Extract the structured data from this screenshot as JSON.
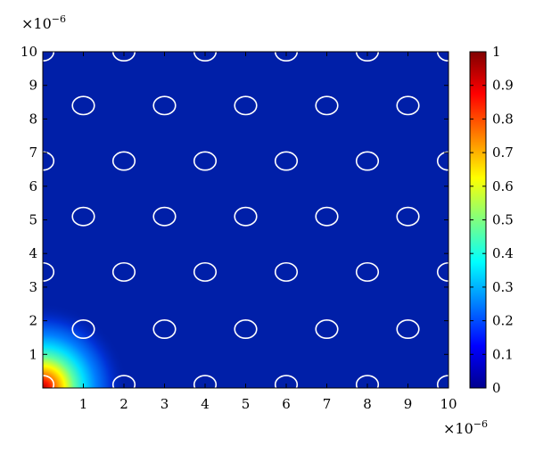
{
  "chart_data": {
    "type": "heatmap",
    "title": "",
    "xlabel": "",
    "ylabel": "",
    "xlim": [
      0,
      10
    ],
    "ylim": [
      0,
      10
    ],
    "x_ticks": [
      "1",
      "2",
      "3",
      "4",
      "5",
      "6",
      "7",
      "8",
      "9",
      "10"
    ],
    "y_ticks": [
      "1",
      "2",
      "3",
      "4",
      "5",
      "6",
      "7",
      "8",
      "9",
      "10"
    ],
    "x_multiplier": {
      "base": "×10",
      "exponent": "−6"
    },
    "y_multiplier": {
      "base": "×10",
      "exponent": "−6"
    },
    "colorbar": {
      "colormap": "jet",
      "range": [
        0,
        1
      ],
      "ticks": [
        "0",
        "0.1",
        "0.2",
        "0.3",
        "0.4",
        "0.5",
        "0.6",
        "0.7",
        "0.8",
        "0.9",
        "1"
      ]
    },
    "field": {
      "description_peak": [
        0,
        0
      ],
      "peak_value": 1,
      "background_value": 0.02
    },
    "circle_outlines": {
      "color": "#ffffff",
      "radius": 0.27,
      "centers": [
        [
          0,
          10
        ],
        [
          2,
          10
        ],
        [
          4,
          10
        ],
        [
          6,
          10
        ],
        [
          8,
          10
        ],
        [
          10,
          10
        ],
        [
          1,
          8.4
        ],
        [
          3,
          8.4
        ],
        [
          5,
          8.4
        ],
        [
          7,
          8.4
        ],
        [
          9,
          8.4
        ],
        [
          0,
          6.75
        ],
        [
          2,
          6.75
        ],
        [
          4,
          6.75
        ],
        [
          6,
          6.75
        ],
        [
          8,
          6.75
        ],
        [
          10,
          6.75
        ],
        [
          1,
          5.1
        ],
        [
          3,
          5.1
        ],
        [
          5,
          5.1
        ],
        [
          7,
          5.1
        ],
        [
          9,
          5.1
        ],
        [
          0,
          3.45
        ],
        [
          2,
          3.45
        ],
        [
          4,
          3.45
        ],
        [
          6,
          3.45
        ],
        [
          8,
          3.45
        ],
        [
          10,
          3.45
        ],
        [
          1,
          1.75
        ],
        [
          3,
          1.75
        ],
        [
          5,
          1.75
        ],
        [
          7,
          1.75
        ],
        [
          9,
          1.75
        ],
        [
          0,
          0.1
        ],
        [
          2,
          0.1
        ],
        [
          4,
          0.1
        ],
        [
          6,
          0.1
        ],
        [
          8,
          0.1
        ],
        [
          10,
          0.1
        ]
      ]
    }
  }
}
